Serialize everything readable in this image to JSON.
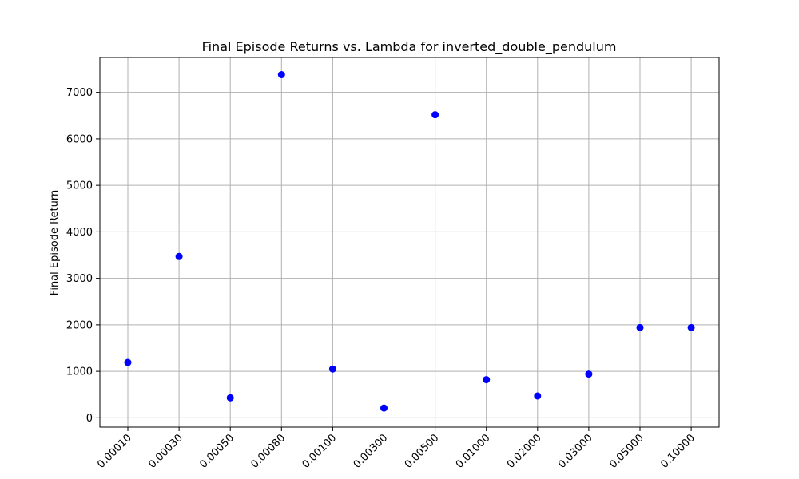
{
  "chart_data": {
    "type": "scatter",
    "title": "Final Episode Returns vs. Lambda for inverted_double_pendulum",
    "xlabel": "",
    "ylabel": "Final Episode Return",
    "categories": [
      "0.00010",
      "0.00030",
      "0.00050",
      "0.00080",
      "0.00100",
      "0.00300",
      "0.00500",
      "0.01000",
      "0.02000",
      "0.03000",
      "0.05000",
      "0.10000"
    ],
    "values": [
      1190,
      3470,
      430,
      7380,
      1050,
      210,
      6520,
      820,
      470,
      940,
      1940,
      1940
    ],
    "yticks": [
      0,
      1000,
      2000,
      3000,
      4000,
      5000,
      6000,
      7000
    ],
    "ylim": [
      -200,
      7750
    ],
    "grid": true,
    "marker_color": "#0000ff"
  }
}
